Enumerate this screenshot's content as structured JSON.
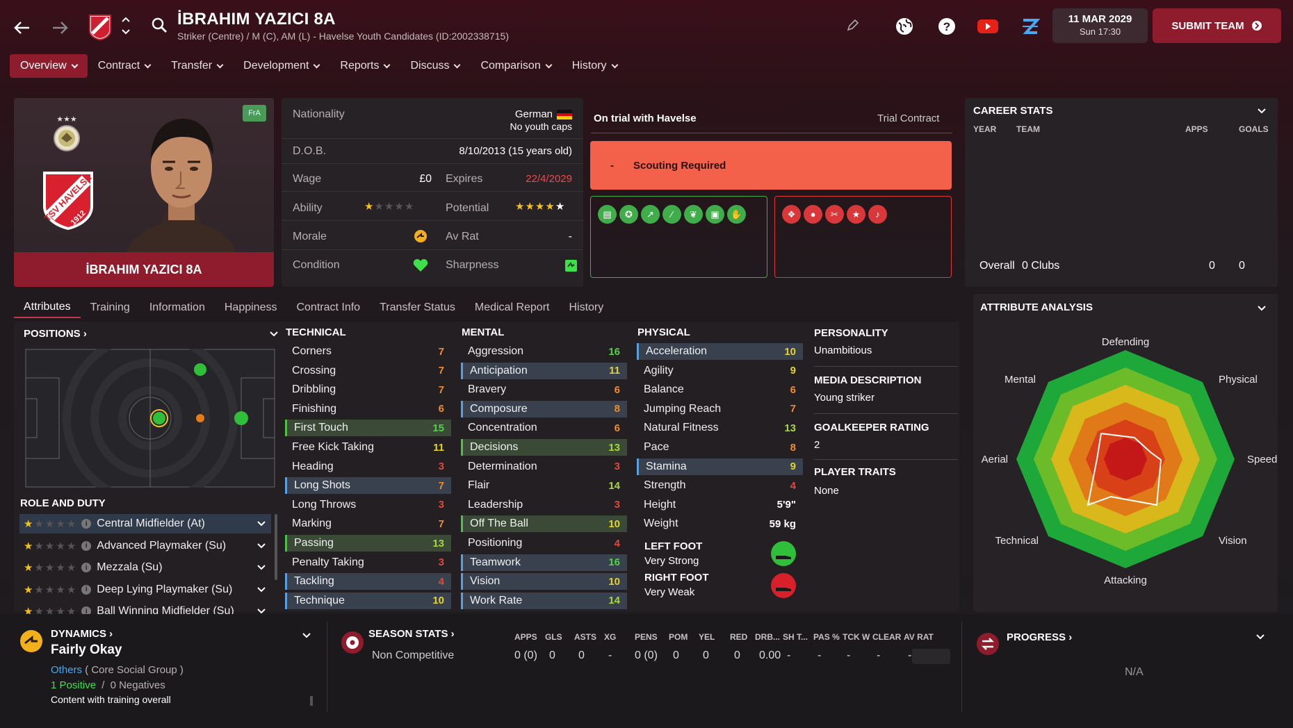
{
  "header": {
    "player_name": "İBRAHIM YAZICI 8A",
    "subtitle": "Striker (Centre) / M (C), AM (L) - Havelse Youth Candidates (ID:2002338715)",
    "date_line1": "11 MAR 2029",
    "date_line2": "Sun 17:30",
    "submit_label": "SUBMIT TEAM"
  },
  "nav": [
    "Overview",
    "Contract",
    "Transfer",
    "Development",
    "Reports",
    "Discuss",
    "Comparison",
    "History"
  ],
  "profile": {
    "name_banner": "İBRAHIM YAZICI 8A",
    "badge": "FrA",
    "club_year": "1912",
    "club_name": "TSV HAVELSE"
  },
  "info": {
    "nationality_label": "Nationality",
    "nationality": "German",
    "youth_caps": "No youth caps",
    "dob_label": "D.O.B.",
    "dob": "8/10/2013 (15 years old)",
    "wage_label": "Wage",
    "wage": "£0",
    "expires_label": "Expires",
    "expires": "22/4/2029",
    "ability_label": "Ability",
    "ability_stars": 1,
    "potential_label": "Potential",
    "potential_stars": 5,
    "morale_label": "Morale",
    "avrat_label": "Av Rat",
    "avrat": "-",
    "condition_label": "Condition",
    "sharpness_label": "Sharpness"
  },
  "trial": {
    "title": "On trial with Havelse",
    "contract": "Trial Contract",
    "scout_dash": "-",
    "scout_text": "Scouting Required"
  },
  "career": {
    "title": "CAREER STATS",
    "col_year": "YEAR",
    "col_team": "TEAM",
    "col_apps": "APPS",
    "col_goals": "GOALS",
    "overall": "Overall",
    "clubs": "0 Clubs",
    "apps": "0",
    "goals": "0"
  },
  "tabs": [
    "Attributes",
    "Training",
    "Information",
    "Happiness",
    "Contract Info",
    "Transfer Status",
    "Medical Report",
    "History"
  ],
  "positions_title": "POSITIONS",
  "role_title": "ROLE AND DUTY",
  "roles": [
    {
      "name": "Central Midfielder (At)",
      "stars": 1
    },
    {
      "name": "Advanced Playmaker (Su)",
      "stars": 1
    },
    {
      "name": "Mezzala (Su)",
      "stars": 1
    },
    {
      "name": "Deep Lying Playmaker (Su)",
      "stars": 1
    },
    {
      "name": "Ball Winning Midfielder (Su)",
      "stars": 1
    }
  ],
  "technical": {
    "title": "TECHNICAL",
    "items": [
      {
        "n": "Corners",
        "v": "7"
      },
      {
        "n": "Crossing",
        "v": "7"
      },
      {
        "n": "Dribbling",
        "v": "7"
      },
      {
        "n": "Finishing",
        "v": "6"
      },
      {
        "n": "First Touch",
        "v": "15"
      },
      {
        "n": "Free Kick Taking",
        "v": "11"
      },
      {
        "n": "Heading",
        "v": "3"
      },
      {
        "n": "Long Shots",
        "v": "7"
      },
      {
        "n": "Long Throws",
        "v": "3"
      },
      {
        "n": "Marking",
        "v": "7"
      },
      {
        "n": "Passing",
        "v": "13"
      },
      {
        "n": "Penalty Taking",
        "v": "3"
      },
      {
        "n": "Tackling",
        "v": "4"
      },
      {
        "n": "Technique",
        "v": "10"
      }
    ]
  },
  "mental": {
    "title": "MENTAL",
    "items": [
      {
        "n": "Aggression",
        "v": "16"
      },
      {
        "n": "Anticipation",
        "v": "11"
      },
      {
        "n": "Bravery",
        "v": "6"
      },
      {
        "n": "Composure",
        "v": "8"
      },
      {
        "n": "Concentration",
        "v": "6"
      },
      {
        "n": "Decisions",
        "v": "13"
      },
      {
        "n": "Determination",
        "v": "3"
      },
      {
        "n": "Flair",
        "v": "14"
      },
      {
        "n": "Leadership",
        "v": "3"
      },
      {
        "n": "Off The Ball",
        "v": "10"
      },
      {
        "n": "Positioning",
        "v": "4"
      },
      {
        "n": "Teamwork",
        "v": "16"
      },
      {
        "n": "Vision",
        "v": "10"
      },
      {
        "n": "Work Rate",
        "v": "14"
      }
    ]
  },
  "physical": {
    "title": "PHYSICAL",
    "items": [
      {
        "n": "Acceleration",
        "v": "10"
      },
      {
        "n": "Agility",
        "v": "9"
      },
      {
        "n": "Balance",
        "v": "6"
      },
      {
        "n": "Jumping Reach",
        "v": "7"
      },
      {
        "n": "Natural Fitness",
        "v": "13"
      },
      {
        "n": "Pace",
        "v": "8"
      },
      {
        "n": "Stamina",
        "v": "9"
      },
      {
        "n": "Strength",
        "v": "4"
      },
      {
        "n": "Height",
        "v": "5'9\""
      },
      {
        "n": "Weight",
        "v": "59 kg"
      }
    ]
  },
  "feet": {
    "left_title": "LEFT FOOT",
    "left": "Very Strong",
    "right_title": "RIGHT FOOT",
    "right": "Very Weak"
  },
  "personality": {
    "p_title": "PERSONALITY",
    "p_val": "Unambitious",
    "m_title": "MEDIA DESCRIPTION",
    "m_val": "Young striker",
    "g_title": "GOALKEEPER RATING",
    "g_val": "2",
    "t_title": "PLAYER TRAITS",
    "t_val": "None"
  },
  "analysis": {
    "title": "ATTRIBUTE ANALYSIS",
    "labels": [
      "Defending",
      "Physical",
      "Speed",
      "Vision",
      "Attacking",
      "Technical",
      "Aerial",
      "Mental"
    ]
  },
  "dynamics": {
    "title": "DYNAMICS",
    "status": "Fairly Okay",
    "group": "Others",
    "group_detail": "( Core Social Group )",
    "positive": "1 Positive",
    "slash": "/",
    "negatives": "0 Negatives",
    "note": "Content with training overall"
  },
  "season": {
    "title": "SEASON STATS",
    "cols": [
      "APPS",
      "GLS",
      "ASTS",
      "XG",
      "PENS",
      "POM",
      "YEL",
      "RED",
      "DRB...",
      "SH T...",
      "PAS %",
      "TCK W",
      "CLEAR",
      "AV RAT"
    ],
    "row_label": "Non Competitive",
    "row": [
      "0 (0)",
      "0",
      "0",
      "-",
      "0 (0)",
      "0",
      "0",
      "0",
      "0.00",
      "-",
      "-",
      "-",
      "-",
      "-"
    ]
  },
  "progress": {
    "title": "PROGRESS",
    "value": "N/A"
  },
  "colors": {
    "accent": "#8e1c2c",
    "scout": "#f4614a",
    "green": "#4fbf4a",
    "red": "#e04a3a"
  }
}
